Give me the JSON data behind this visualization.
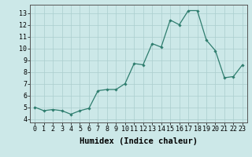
{
  "x": [
    0,
    1,
    2,
    3,
    4,
    5,
    6,
    7,
    8,
    9,
    10,
    11,
    12,
    13,
    14,
    15,
    16,
    17,
    18,
    19,
    20,
    21,
    22,
    23
  ],
  "y": [
    5.0,
    4.7,
    4.8,
    4.7,
    4.4,
    4.7,
    4.9,
    6.4,
    6.5,
    6.5,
    7.0,
    8.7,
    8.6,
    10.4,
    10.1,
    12.4,
    12.0,
    13.2,
    13.2,
    10.7,
    9.8,
    7.5,
    7.6,
    8.6
  ],
  "line_color": "#2e7d6e",
  "marker": "D",
  "marker_size": 1.8,
  "line_width": 0.9,
  "bg_color": "#cce8e8",
  "grid_color": "#aacece",
  "xlabel": "Humidex (Indice chaleur)",
  "xlabel_fontsize": 7.5,
  "ylim": [
    3.7,
    13.7
  ],
  "xlim": [
    -0.5,
    23.5
  ],
  "yticks": [
    4,
    5,
    6,
    7,
    8,
    9,
    10,
    11,
    12,
    13
  ],
  "xticks": [
    0,
    1,
    2,
    3,
    4,
    5,
    6,
    7,
    8,
    9,
    10,
    11,
    12,
    13,
    14,
    15,
    16,
    17,
    18,
    19,
    20,
    21,
    22,
    23
  ],
  "tick_fontsize": 6.0,
  "spine_color": "#555555"
}
